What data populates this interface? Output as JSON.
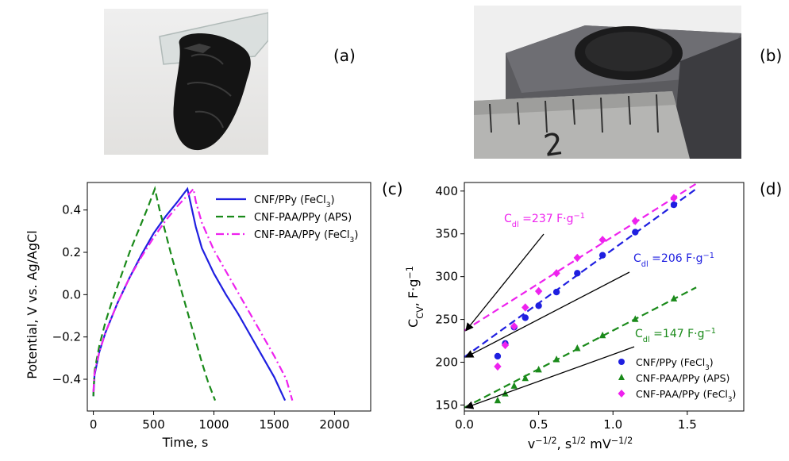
{
  "panels": {
    "a": "(a)",
    "b": "(b)",
    "c": "(c)",
    "d": "(d)"
  },
  "photos": {
    "a": "photo-film-on-glass",
    "b": "photo-electrode-with-ruler",
    "ruler_number": "2"
  },
  "chart_data": [
    {
      "type": "line",
      "xlabel": "Time, s",
      "ylabel": "Potential, V vs. Ag/AgCl",
      "xlim": [
        -50,
        2300
      ],
      "ylim": [
        -0.55,
        0.53
      ],
      "xticks": [
        0,
        500,
        1000,
        1500,
        2000
      ],
      "yticks": [
        -0.4,
        -0.2,
        0.0,
        0.2,
        0.4
      ],
      "xtick_labels": [
        "0",
        "500",
        "1000",
        "1500",
        "2000"
      ],
      "ytick_labels": [
        "−0.4",
        "−0.2",
        "0.0",
        "0.2",
        "0.4"
      ],
      "grid": false,
      "legend": "top-right",
      "series": [
        {
          "name": "CNF/PPy (FeCl",
          "sub": "3",
          "suffix": ")",
          "color": "#1f1fe0",
          "style": "solid",
          "x": [
            0,
            10,
            50,
            100,
            200,
            300,
            400,
            500,
            600,
            700,
            780,
            800,
            850,
            900,
            1000,
            1100,
            1200,
            1300,
            1400,
            1500,
            1590
          ],
          "y": [
            -0.48,
            -0.38,
            -0.27,
            -0.18,
            -0.04,
            0.08,
            0.19,
            0.29,
            0.37,
            0.44,
            0.5,
            0.45,
            0.32,
            0.22,
            0.1,
            0.0,
            -0.09,
            -0.19,
            -0.29,
            -0.39,
            -0.5
          ]
        },
        {
          "name": "CNF-PAA/PPy (APS)",
          "color": "#1a8a1a",
          "style": "dashed",
          "x": [
            0,
            10,
            50,
            100,
            150,
            200,
            250,
            300,
            350,
            400,
            450,
            510,
            550,
            600,
            650,
            700,
            750,
            800,
            850,
            900,
            950,
            1010
          ],
          "y": [
            -0.48,
            -0.36,
            -0.24,
            -0.13,
            -0.04,
            0.04,
            0.12,
            0.2,
            0.27,
            0.34,
            0.41,
            0.5,
            0.4,
            0.29,
            0.18,
            0.08,
            -0.02,
            -0.12,
            -0.22,
            -0.32,
            -0.41,
            -0.5
          ]
        },
        {
          "name": "CNF-PAA/PPy (FeCl",
          "sub": "3",
          "suffix": ")",
          "color": "#ee22ee",
          "style": "dashdot",
          "x": [
            0,
            10,
            50,
            100,
            200,
            300,
            400,
            500,
            600,
            700,
            800,
            830,
            850,
            900,
            1000,
            1100,
            1200,
            1300,
            1400,
            1500,
            1600,
            1650
          ],
          "y": [
            -0.46,
            -0.37,
            -0.27,
            -0.18,
            -0.04,
            0.08,
            0.18,
            0.27,
            0.35,
            0.42,
            0.48,
            0.5,
            0.44,
            0.34,
            0.21,
            0.11,
            0.01,
            -0.09,
            -0.19,
            -0.29,
            -0.4,
            -0.5
          ]
        }
      ]
    },
    {
      "type": "scatter",
      "xlabel": "v",
      "xlabel_sup1": "−1/2",
      "xlabel_mid": ", s",
      "xlabel_sup2": "1/2",
      "xlabel_unit": " mV",
      "xlabel_sup3": "−1/2",
      "ylabel": "C",
      "ylabel_sub": "CV",
      "ylabel_unit": ", F·g",
      "ylabel_sup": "−1",
      "xlim": [
        0,
        1.88
      ],
      "ylim": [
        143,
        410
      ],
      "xticks": [
        0.0,
        0.5,
        1.0,
        1.5
      ],
      "yticks": [
        150,
        200,
        250,
        300,
        350,
        400
      ],
      "xtick_labels": [
        "0.0",
        "0.5",
        "1.0",
        "1.5"
      ],
      "ytick_labels": [
        "150",
        "200",
        "250",
        "300",
        "350",
        "400"
      ],
      "grid": false,
      "legend": "bottom-right",
      "series": [
        {
          "name": "CNF/PPy (FeCl",
          "sub": "3",
          "suffix": ")",
          "color": "#1f1fe0",
          "marker": "circle",
          "x": [
            0.224,
            0.275,
            0.335,
            0.41,
            0.5,
            0.62,
            0.76,
            0.93,
            1.15,
            1.41
          ],
          "y": [
            207,
            222,
            241,
            252,
            266,
            282,
            304,
            325,
            352,
            384
          ],
          "fit": {
            "intercept": 206,
            "slope": 126,
            "x_end": 1.56
          }
        },
        {
          "name": "CNF-PAA/PPy (APS)",
          "color": "#1a8a1a",
          "marker": "triangle",
          "x": [
            0.224,
            0.275,
            0.335,
            0.41,
            0.5,
            0.62,
            0.76,
            0.93,
            1.15,
            1.41
          ],
          "y": [
            155,
            163,
            172,
            181,
            191,
            203,
            216,
            231,
            250,
            274
          ],
          "fit": {
            "intercept": 147,
            "slope": 90,
            "x_end": 1.56
          }
        },
        {
          "name": "CNF-PAA/PPy (FeCl",
          "sub": "3",
          "suffix": ")",
          "color": "#ee22ee",
          "marker": "diamond",
          "x": [
            0.224,
            0.275,
            0.335,
            0.41,
            0.5,
            0.62,
            0.76,
            0.93,
            1.15,
            1.41
          ],
          "y": [
            195,
            220,
            242,
            264,
            283,
            304,
            322,
            343,
            365,
            392
          ],
          "fit": {
            "intercept": 237,
            "slope": 110,
            "x_end": 1.56
          }
        }
      ],
      "annotations": [
        {
          "prefix": "C",
          "sub": "dl",
          "text": " =237 F·g",
          "sup": "−1",
          "color": "#ee22ee",
          "target": [
            0.0,
            237
          ]
        },
        {
          "prefix": "C",
          "sub": "dl",
          "text": " =206 F·g",
          "sup": "−1",
          "color": "#1f1fe0",
          "target": [
            0.0,
            206
          ]
        },
        {
          "prefix": "C",
          "sub": "dl",
          "text": " =147 F·g",
          "sup": "−1",
          "color": "#1a8a1a",
          "target": [
            0.0,
            147
          ]
        }
      ]
    }
  ]
}
